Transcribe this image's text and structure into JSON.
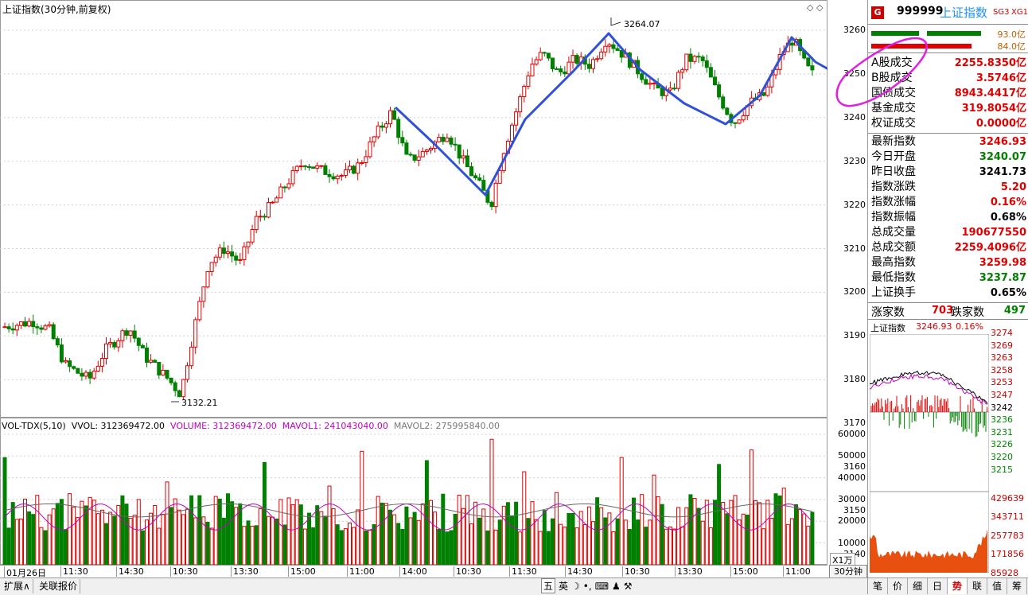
{
  "main_chart": {
    "title": "上证指数(30分钟,前复权)",
    "price_axis_ticks": [
      "3260",
      "3250",
      "3240",
      "3230",
      "3220",
      "3210",
      "3200",
      "3190",
      "3180",
      "3170",
      "3160",
      "3150",
      "3140"
    ],
    "high_label": "3264.07",
    "low_label": "3132.21"
  },
  "volume_chart": {
    "title_left": "VOL-TDX(5,10)",
    "vvol_label": "VVOL: 312369472.00",
    "volume_label": "VOLUME: 312369472.00",
    "mavol1_label": "MAVOL1: 241043040.00",
    "mavol2_label": "MAVOL2: 275995840.00",
    "axis_ticks": [
      "60000",
      "50000",
      "40000",
      "30000",
      "20000",
      "10000"
    ],
    "unit": "X1万"
  },
  "time_axis": [
    "01月26日",
    "11:30",
    "14:30",
    "10:30",
    "13:30",
    "15:00",
    "11:00",
    "14:00",
    "10:30",
    "11:30",
    "14:30",
    "10:30",
    "13:30",
    "15:00",
    "11:00"
  ],
  "period_label": "30分钟",
  "bottom_left_tabs": [
    "扩展∧",
    "关联报价"
  ],
  "toolbar_icons": [
    "五",
    "英"
  ],
  "quote_panel": {
    "badge": "G",
    "code": "999999",
    "name": "上证指数",
    "tags": [
      "SG3",
      "XG1"
    ],
    "buy_amount": "93.0亿",
    "sell_amount": "84.0亿",
    "turnover_rows": [
      {
        "label": "A股成交",
        "value": "2255.8350亿",
        "color": "red"
      },
      {
        "label": "B股成交",
        "value": "3.5746亿",
        "color": "red"
      },
      {
        "label": "国债成交",
        "value": "8943.4417亿",
        "color": "red"
      },
      {
        "label": "基金成交",
        "value": "319.8054亿",
        "color": "red"
      },
      {
        "label": "权证成交",
        "value": "0.0000亿",
        "color": "red"
      }
    ],
    "index_rows": [
      {
        "label": "最新指数",
        "value": "3246.93",
        "color": "red"
      },
      {
        "label": "今日开盘",
        "value": "3240.07",
        "color": "green"
      },
      {
        "label": "昨日收盘",
        "value": "3241.73",
        "color": "blk"
      },
      {
        "label": "指数涨跌",
        "value": "5.20",
        "color": "red"
      },
      {
        "label": "指数涨幅",
        "value": "0.16%",
        "color": "red"
      },
      {
        "label": "指数振幅",
        "value": "0.68%",
        "color": "blk"
      },
      {
        "label": "总成交量",
        "value": "190677550",
        "color": "red"
      },
      {
        "label": "总成交额",
        "value": "2259.4096亿",
        "color": "red"
      },
      {
        "label": "最高指数",
        "value": "3259.98",
        "color": "red"
      },
      {
        "label": "最低指数",
        "value": "3237.87",
        "color": "green"
      },
      {
        "label": "上证换手",
        "value": "0.65%",
        "color": "blk"
      }
    ],
    "advance_label": "涨家数",
    "advance_value": "703",
    "decline_label": "跌家数",
    "decline_value": "497"
  },
  "mini_chart": {
    "title": "上证指数",
    "price": "3246.93",
    "pct": "0.16%",
    "price_ticks_red": [
      "3274",
      "3269",
      "3263",
      "3258",
      "3253",
      "3247"
    ],
    "price_mid": "3242",
    "price_ticks_green": [
      "3236",
      "3231",
      "3226",
      "3220",
      "3215"
    ],
    "volume_ticks": [
      "429639",
      "343711",
      "257783",
      "171856",
      "85928"
    ]
  },
  "bottom_tabs": [
    "笔",
    "价",
    "细",
    "日",
    "势",
    "联",
    "值",
    "筹"
  ],
  "active_tab": "势"
}
